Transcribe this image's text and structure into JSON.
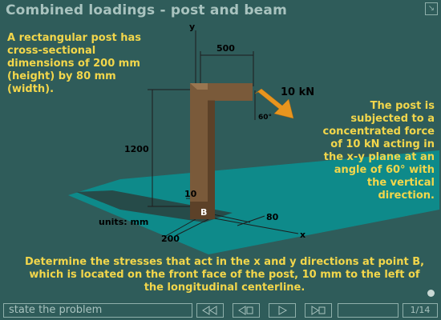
{
  "header": {
    "title": "Combined loadings - post and beam"
  },
  "problem": {
    "left_text": "A rectangular post has cross-sectional dimensions of 200 mm (height) by 80 mm (width).",
    "right_text": "The post is subjected to a concentrated force of 10 kN acting in the x-y plane at an angle of 60° with the vertical direction.",
    "bottom_text": "Determine the stresses that act in the x and y directions at point B, which is located on the front face of the post, 10 mm to the left of the longitudinal centerline."
  },
  "diagram": {
    "axis_y": "y",
    "axis_x": "x",
    "dim_beam_length": "500",
    "force_label": "10 kN",
    "angle_label": "60°",
    "dim_height": "1200",
    "dim_offset": "10",
    "point_label": "B",
    "units": "units: mm",
    "dim_depth": "80",
    "dim_width": "200"
  },
  "navigation": {
    "status": "state the problem",
    "page_current": "1",
    "page_total": "14"
  },
  "colors": {
    "background": "#2f5c5a",
    "ground_plane": "#0e8a8a",
    "post": "#7a5a3a",
    "force_arrow": "#e8951e",
    "text_highlight": "#f2d64b"
  }
}
